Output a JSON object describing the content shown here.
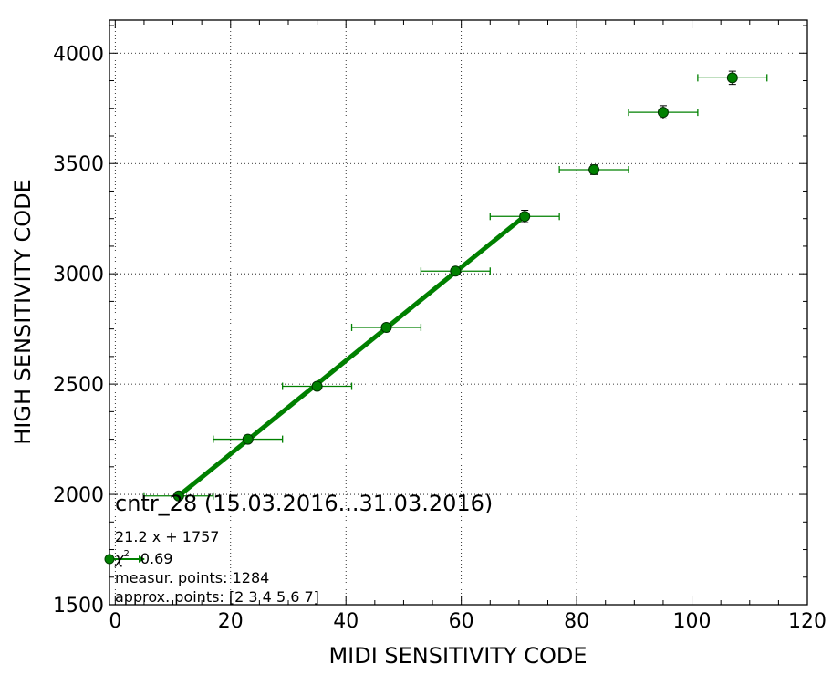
{
  "chart_data": {
    "type": "scatter",
    "xlabel": "MIDI SENSITIVITY CODE",
    "ylabel": "HIGH SENSITIVITY CODE",
    "xlim": [
      -1,
      120
    ],
    "ylim": [
      1500,
      4150
    ],
    "xticks": [
      0,
      20,
      40,
      60,
      80,
      100,
      120
    ],
    "yticks": [
      1500,
      2000,
      2500,
      3000,
      3500,
      4000
    ],
    "x_tick_labels": [
      "0",
      "20",
      "40",
      "60",
      "80",
      "100",
      "120"
    ],
    "y_tick_labels": [
      "1500",
      "2000",
      "2500",
      "3000",
      "3500",
      "4000"
    ],
    "grid": true,
    "series": [
      {
        "type": "errorbar",
        "color": "#008000",
        "points": [
          {
            "x": 11,
            "y": 1993,
            "xerr": 6,
            "yerr": 8
          },
          {
            "x": 23,
            "y": 2250,
            "xerr": 6,
            "yerr": 10
          },
          {
            "x": 35,
            "y": 2490,
            "xerr": 6,
            "yerr": 10
          },
          {
            "x": 47,
            "y": 2757,
            "xerr": 6,
            "yerr": 12
          },
          {
            "x": 59,
            "y": 3012,
            "xerr": 6,
            "yerr": 14
          },
          {
            "x": 71,
            "y": 3260,
            "xerr": 6,
            "yerr": 28
          },
          {
            "x": 83,
            "y": 3472,
            "xerr": 6,
            "yerr": 22
          },
          {
            "x": 95,
            "y": 3732,
            "xerr": 6,
            "yerr": 30
          },
          {
            "x": 107,
            "y": 3888,
            "xerr": 6,
            "yerr": 30
          }
        ]
      },
      {
        "type": "line",
        "color": "#008000",
        "x": [
          11,
          71
        ],
        "y": [
          1993,
          3262
        ]
      }
    ],
    "annotations": {
      "title": "cntr_28 (15.03.2016...31.03.2016)",
      "equation": "21.2 x + 1757",
      "chi_symbol": "χ",
      "chi_exp": "2",
      "chi_value": "0.69",
      "measur_points": "measur. points: 1284",
      "approx_points": "approx. points: [2 3 4 5 6 7]"
    }
  }
}
